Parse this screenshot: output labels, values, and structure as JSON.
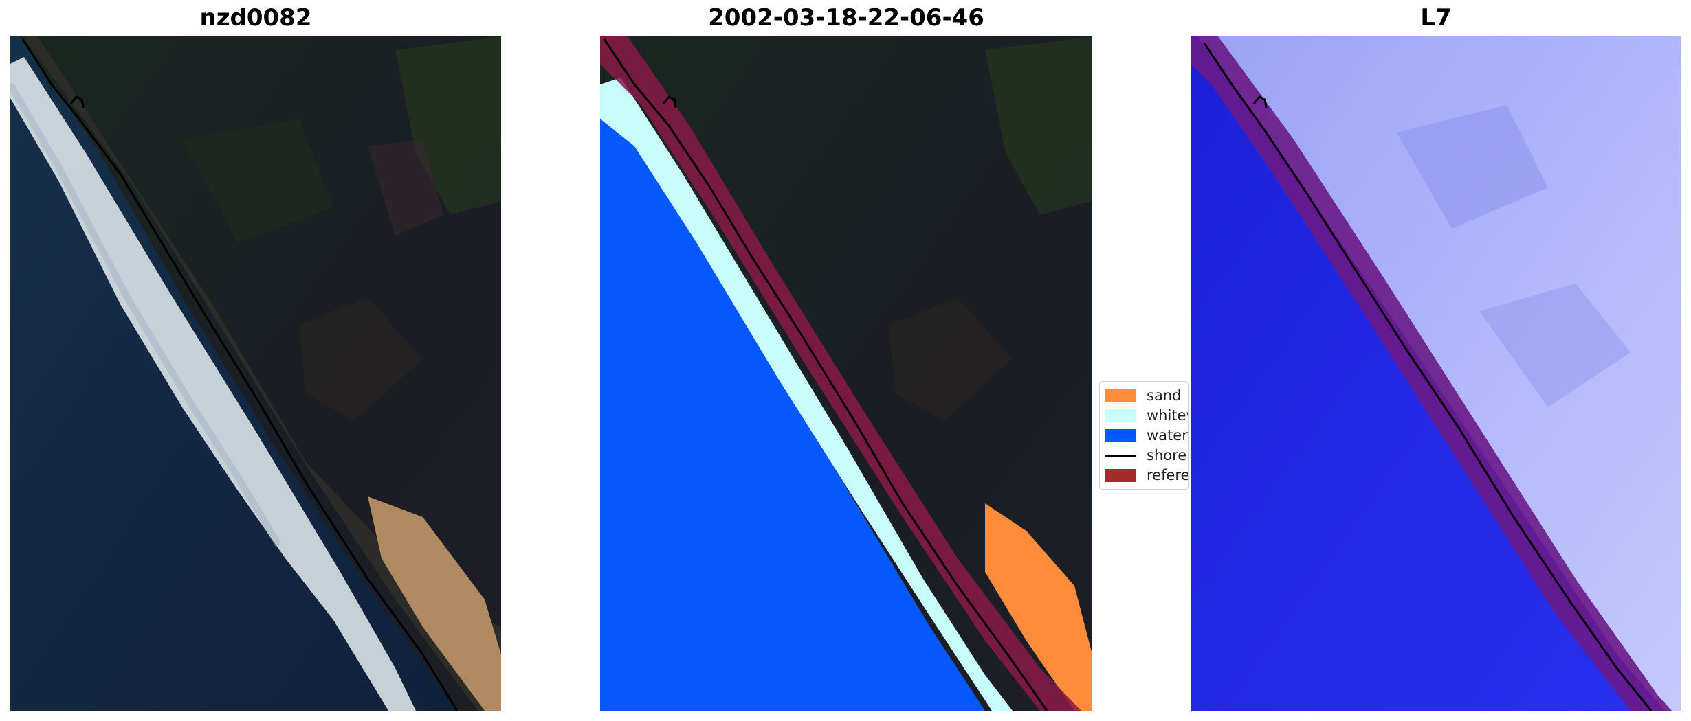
{
  "panels": [
    {
      "title": "nzd0082"
    },
    {
      "title": "2002-03-18-22-06-46"
    },
    {
      "title": "L7"
    }
  ],
  "legend": {
    "items": [
      {
        "label": "sand",
        "color": "#ff8c3a",
        "kind": "patch"
      },
      {
        "label": "whitewater",
        "color": "#c8fdfb",
        "kind": "patch"
      },
      {
        "label": "water",
        "color": "#0058ff",
        "kind": "patch"
      },
      {
        "label": "shoreline",
        "color": "#000000",
        "kind": "line"
      },
      {
        "label": "reference",
        "color": "#a52a2a",
        "kind": "patch"
      }
    ]
  },
  "colors": {
    "ocean": "#10223c",
    "land": "#191c22",
    "vegetation": "#1f2e22",
    "beach_sand": "#b08a60",
    "surf": "#e8eef2",
    "classified_water": "#0558fc",
    "classified_whitewater": "#c8fdfb",
    "classified_sand": "#ff8c3a",
    "reference_buffer": "#8a1a48",
    "mndwi_water": "#2a2ae8",
    "mndwi_land": "#a8aefa"
  }
}
